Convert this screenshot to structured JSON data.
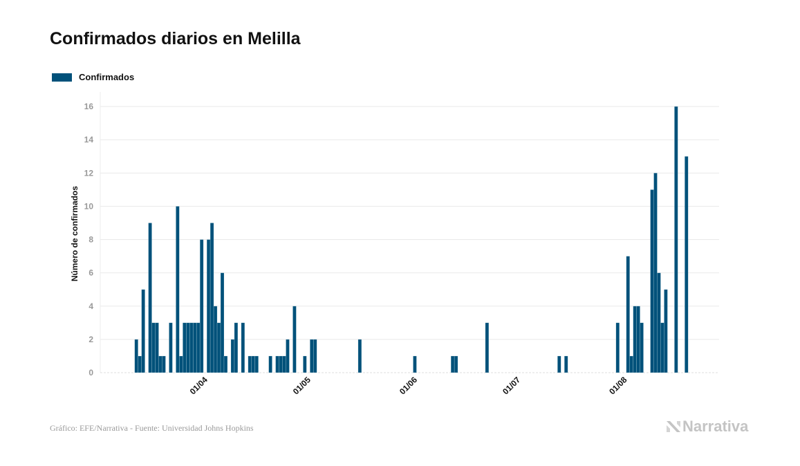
{
  "title": "Confirmados diarios en Melilla",
  "legend": {
    "label": "Confirmados",
    "position": "top-left"
  },
  "footer": "Gráfico: EFE/Narrativa - Fuente: Universidad Johns Hopkins",
  "logo": "Narrativa",
  "colors": {
    "bar": "#00517a",
    "grid": "#e9e9e9",
    "tick_text": "#999999",
    "logo": "#c4c4c4"
  },
  "chart_data": {
    "type": "bar",
    "title": "Confirmados diarios en Melilla",
    "xlabel": "",
    "ylabel": "Número de confirmados",
    "ylim": [
      0,
      16
    ],
    "xlim": [
      "2020-03-03",
      "2020-08-30"
    ],
    "yticks": [
      0,
      2,
      4,
      6,
      8,
      10,
      12,
      14,
      16
    ],
    "xticks": [
      {
        "date": "2020-04-01",
        "label": "01/04"
      },
      {
        "date": "2020-05-01",
        "label": "01/05"
      },
      {
        "date": "2020-06-01",
        "label": "01/06"
      },
      {
        "date": "2020-07-01",
        "label": "01/07"
      },
      {
        "date": "2020-08-01",
        "label": "01/08"
      }
    ],
    "grid": true,
    "series": [
      {
        "name": "Confirmados",
        "note_zero_days": "days not listed have 0 confirmed",
        "points": [
          {
            "date": "2020-03-13",
            "value": 2
          },
          {
            "date": "2020-03-14",
            "value": 1
          },
          {
            "date": "2020-03-15",
            "value": 5
          },
          {
            "date": "2020-03-17",
            "value": 9
          },
          {
            "date": "2020-03-18",
            "value": 3
          },
          {
            "date": "2020-03-19",
            "value": 3
          },
          {
            "date": "2020-03-20",
            "value": 1
          },
          {
            "date": "2020-03-21",
            "value": 1
          },
          {
            "date": "2020-03-23",
            "value": 3
          },
          {
            "date": "2020-03-25",
            "value": 10
          },
          {
            "date": "2020-03-26",
            "value": 1
          },
          {
            "date": "2020-03-27",
            "value": 3
          },
          {
            "date": "2020-03-28",
            "value": 3
          },
          {
            "date": "2020-03-29",
            "value": 3
          },
          {
            "date": "2020-03-30",
            "value": 3
          },
          {
            "date": "2020-03-31",
            "value": 3
          },
          {
            "date": "2020-04-01",
            "value": 8
          },
          {
            "date": "2020-04-03",
            "value": 8
          },
          {
            "date": "2020-04-04",
            "value": 9
          },
          {
            "date": "2020-04-05",
            "value": 4
          },
          {
            "date": "2020-04-06",
            "value": 3
          },
          {
            "date": "2020-04-07",
            "value": 6
          },
          {
            "date": "2020-04-08",
            "value": 1
          },
          {
            "date": "2020-04-10",
            "value": 2
          },
          {
            "date": "2020-04-11",
            "value": 3
          },
          {
            "date": "2020-04-13",
            "value": 3
          },
          {
            "date": "2020-04-15",
            "value": 1
          },
          {
            "date": "2020-04-16",
            "value": 1
          },
          {
            "date": "2020-04-17",
            "value": 1
          },
          {
            "date": "2020-04-21",
            "value": 1
          },
          {
            "date": "2020-04-23",
            "value": 1
          },
          {
            "date": "2020-04-24",
            "value": 1
          },
          {
            "date": "2020-04-25",
            "value": 1
          },
          {
            "date": "2020-04-26",
            "value": 2
          },
          {
            "date": "2020-04-28",
            "value": 4
          },
          {
            "date": "2020-05-01",
            "value": 1
          },
          {
            "date": "2020-05-03",
            "value": 2
          },
          {
            "date": "2020-05-04",
            "value": 2
          },
          {
            "date": "2020-05-17",
            "value": 2
          },
          {
            "date": "2020-06-02",
            "value": 1
          },
          {
            "date": "2020-06-13",
            "value": 1
          },
          {
            "date": "2020-06-14",
            "value": 1
          },
          {
            "date": "2020-06-23",
            "value": 3
          },
          {
            "date": "2020-07-14",
            "value": 1
          },
          {
            "date": "2020-07-16",
            "value": 1
          },
          {
            "date": "2020-07-31",
            "value": 3
          },
          {
            "date": "2020-08-03",
            "value": 7
          },
          {
            "date": "2020-08-04",
            "value": 1
          },
          {
            "date": "2020-08-05",
            "value": 4
          },
          {
            "date": "2020-08-06",
            "value": 4
          },
          {
            "date": "2020-08-07",
            "value": 3
          },
          {
            "date": "2020-08-10",
            "value": 11
          },
          {
            "date": "2020-08-11",
            "value": 12
          },
          {
            "date": "2020-08-12",
            "value": 6
          },
          {
            "date": "2020-08-13",
            "value": 3
          },
          {
            "date": "2020-08-14",
            "value": 5
          },
          {
            "date": "2020-08-17",
            "value": 16
          },
          {
            "date": "2020-08-20",
            "value": 13
          }
        ]
      }
    ]
  }
}
